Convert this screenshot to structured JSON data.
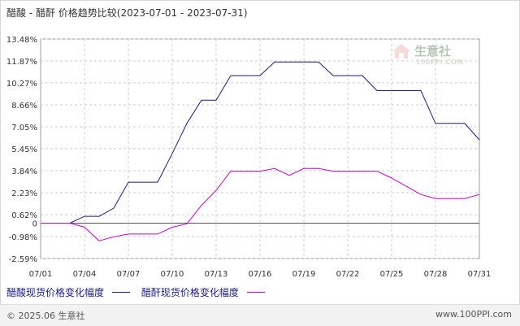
{
  "title": "醋酸 - 醋酐 价格趋势比较(2023-07-01 - 2023-07-31)",
  "watermark": {
    "name": "生意社",
    "url": "100PPI.COM"
  },
  "footer": {
    "copyright": "© 2025.06 生意社",
    "site": "www.100PPI.com"
  },
  "colors": {
    "series_1": "#1a1a8c",
    "series_2": "#cc00cc",
    "grid": "#cccccc",
    "zero_line": "#555555"
  },
  "chart_data": {
    "type": "line",
    "title": "醋酸 - 醋酐 价格趋势比较(2023-07-01 - 2023-07-31)",
    "xlabel": "",
    "ylabel": "",
    "x_ticks": [
      "07/01",
      "07/04",
      "07/07",
      "07/10",
      "07/13",
      "07/16",
      "07/19",
      "07/22",
      "07/25",
      "07/28",
      "07/31"
    ],
    "y_ticks": [
      "13.48%",
      "11.87%",
      "10.27%",
      "8.66%",
      "7.05%",
      "5.45%",
      "3.84%",
      "2.23%",
      "0.62%",
      "0",
      "-0.98%",
      "-2.59%"
    ],
    "y_tick_values": [
      13.48,
      11.87,
      10.27,
      8.66,
      7.05,
      5.45,
      3.84,
      2.23,
      0.62,
      0,
      -0.98,
      -2.59
    ],
    "ylim": [
      -2.59,
      13.48
    ],
    "grid": true,
    "legend_position": "bottom",
    "x": [
      1,
      2,
      3,
      4,
      5,
      6,
      7,
      8,
      9,
      10,
      11,
      12,
      13,
      14,
      15,
      16,
      17,
      18,
      19,
      20,
      21,
      22,
      23,
      24,
      25,
      26,
      27,
      28,
      29,
      30,
      31
    ],
    "series": [
      {
        "name": "醋酸现货价格变化幅度",
        "values": [
          0,
          0,
          0,
          0.5,
          0.5,
          1.1,
          3.0,
          3.0,
          3.0,
          5.1,
          7.3,
          9.0,
          9.0,
          10.8,
          10.8,
          10.8,
          11.8,
          11.8,
          11.8,
          11.8,
          10.8,
          10.8,
          10.8,
          9.7,
          9.7,
          9.7,
          9.7,
          7.3,
          7.3,
          7.3,
          6.1
        ]
      },
      {
        "name": "醋酐现货价格变化幅度",
        "values": [
          0,
          0,
          0,
          -0.3,
          -1.3,
          -1.0,
          -0.8,
          -0.8,
          -0.8,
          -0.3,
          -0.05,
          1.3,
          2.4,
          3.8,
          3.8,
          3.8,
          4.0,
          3.5,
          4.0,
          4.0,
          3.8,
          3.8,
          3.8,
          3.8,
          3.3,
          2.7,
          2.1,
          1.8,
          1.8,
          1.8,
          2.1
        ]
      }
    ]
  }
}
